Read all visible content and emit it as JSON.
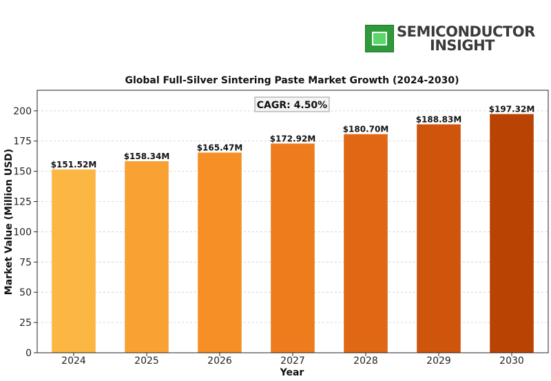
{
  "logo": {
    "line1": "SEMICONDUCTOR",
    "line2": "INSIGHT",
    "icon": "chip-icon",
    "colors": {
      "chip": "#2e9a3c",
      "text": "#3a3a3a"
    }
  },
  "chart_data": {
    "type": "bar",
    "title": "Global Full-Silver Sintering Paste Market Growth (2024-2030)",
    "xlabel": "Year",
    "ylabel": "Market Value (Million USD)",
    "categories": [
      "2024",
      "2025",
      "2026",
      "2027",
      "2028",
      "2029",
      "2030"
    ],
    "values": [
      151.52,
      158.34,
      165.47,
      172.92,
      180.7,
      188.83,
      197.32
    ],
    "data_labels": [
      "$151.52M",
      "$158.34M",
      "$165.47M",
      "$172.92M",
      "$180.70M",
      "$188.83M",
      "$197.32M"
    ],
    "bar_colors": [
      "#fbb643",
      "#f9a233",
      "#f68f26",
      "#ee7b1c",
      "#e06714",
      "#cf540c",
      "#b94303"
    ],
    "yticks": [
      0,
      25,
      50,
      75,
      100,
      125,
      150,
      175,
      200
    ],
    "ylim": [
      0,
      217
    ],
    "grid": true,
    "annotation": "CAGR: 4.50%"
  }
}
